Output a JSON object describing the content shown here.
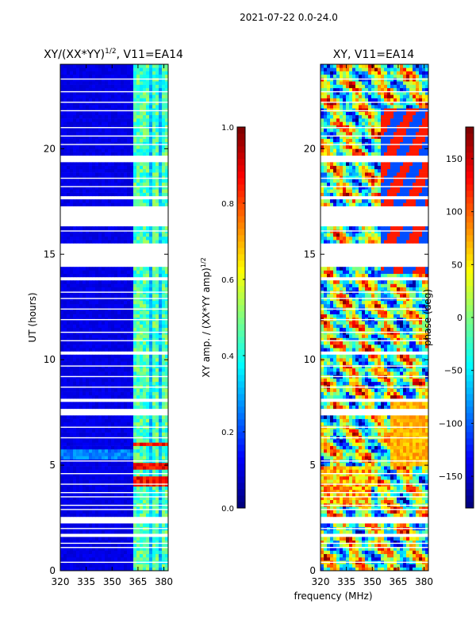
{
  "figure": {
    "suptitle": "2021-07-22 0.0-24.0",
    "xlabel": "frequency (MHz)"
  },
  "chart_data": [
    {
      "type": "heatmap",
      "title_main": "XY/(XX*YY)",
      "title_sup": "1/2",
      "title_tail": ", V11=EA14",
      "xlabel": "frequency (MHz)",
      "ylabel": "UT (hours)",
      "xlim": [
        320,
        382.5
      ],
      "ylim": [
        0,
        24
      ],
      "xticks": [
        320,
        335,
        350,
        365,
        380
      ],
      "yticks": [
        0,
        5,
        10,
        15,
        20
      ],
      "colorbar": {
        "label_main": "XY amp. / (XX*YY amp)",
        "label_sup": "1/2",
        "range": [
          0.0,
          1.0
        ],
        "ticks": [
          "0.0",
          "0.2",
          "0.4",
          "0.6",
          "0.8",
          "1.0"
        ],
        "colormap": "jet"
      }
    },
    {
      "type": "heatmap",
      "title": "XY, V11=EA14",
      "xlabel": "frequency (MHz)",
      "ylabel": "",
      "xlim": [
        320,
        382.5
      ],
      "ylim": [
        0,
        24
      ],
      "xticks": [
        320,
        335,
        350,
        365,
        380
      ],
      "yticks": [
        0,
        5,
        10,
        15,
        20
      ],
      "colorbar": {
        "label": "phase (deg)",
        "range": [
          -180,
          180
        ],
        "ticks": [
          "150",
          "100",
          "50",
          "0",
          "−50",
          "−100",
          "−150"
        ],
        "tick_values": [
          150,
          100,
          50,
          0,
          -50,
          -100,
          -150
        ],
        "colormap": "jet"
      }
    }
  ],
  "gaps_hours": [
    [
      14.4,
      15.6
    ],
    [
      16.3,
      17.3
    ],
    [
      19.3,
      19.6
    ],
    [
      17.6,
      17.8
    ],
    [
      7.3,
      7.6
    ],
    [
      8.0,
      8.2
    ],
    [
      2.2,
      2.5
    ],
    [
      1.6,
      1.8
    ],
    [
      0.6,
      0.7
    ],
    [
      13.8,
      13.9
    ],
    [
      10.3,
      10.4
    ]
  ],
  "thin_gaps_hours": [
    23.3,
    22.7,
    22.2,
    21.8,
    21.0,
    20.6,
    20.2,
    18.6,
    18.2,
    16.1,
    13.2,
    12.9,
    12.4,
    11.9,
    11.3,
    10.9,
    9.7,
    9.2,
    8.7,
    6.8,
    6.3,
    5.2,
    4.6,
    4.1,
    3.7,
    3.5,
    3.1,
    2.9,
    2.0,
    1.3,
    1.1,
    0.4
  ],
  "bright_channels_mhz": [
    [
      364,
      366
    ],
    [
      368,
      371
    ],
    [
      374,
      376
    ],
    [
      379,
      381
    ]
  ],
  "hot_hours": [
    [
      4.85,
      5.05
    ],
    [
      5.85,
      6.1
    ],
    [
      4.0,
      4.5
    ]
  ]
}
